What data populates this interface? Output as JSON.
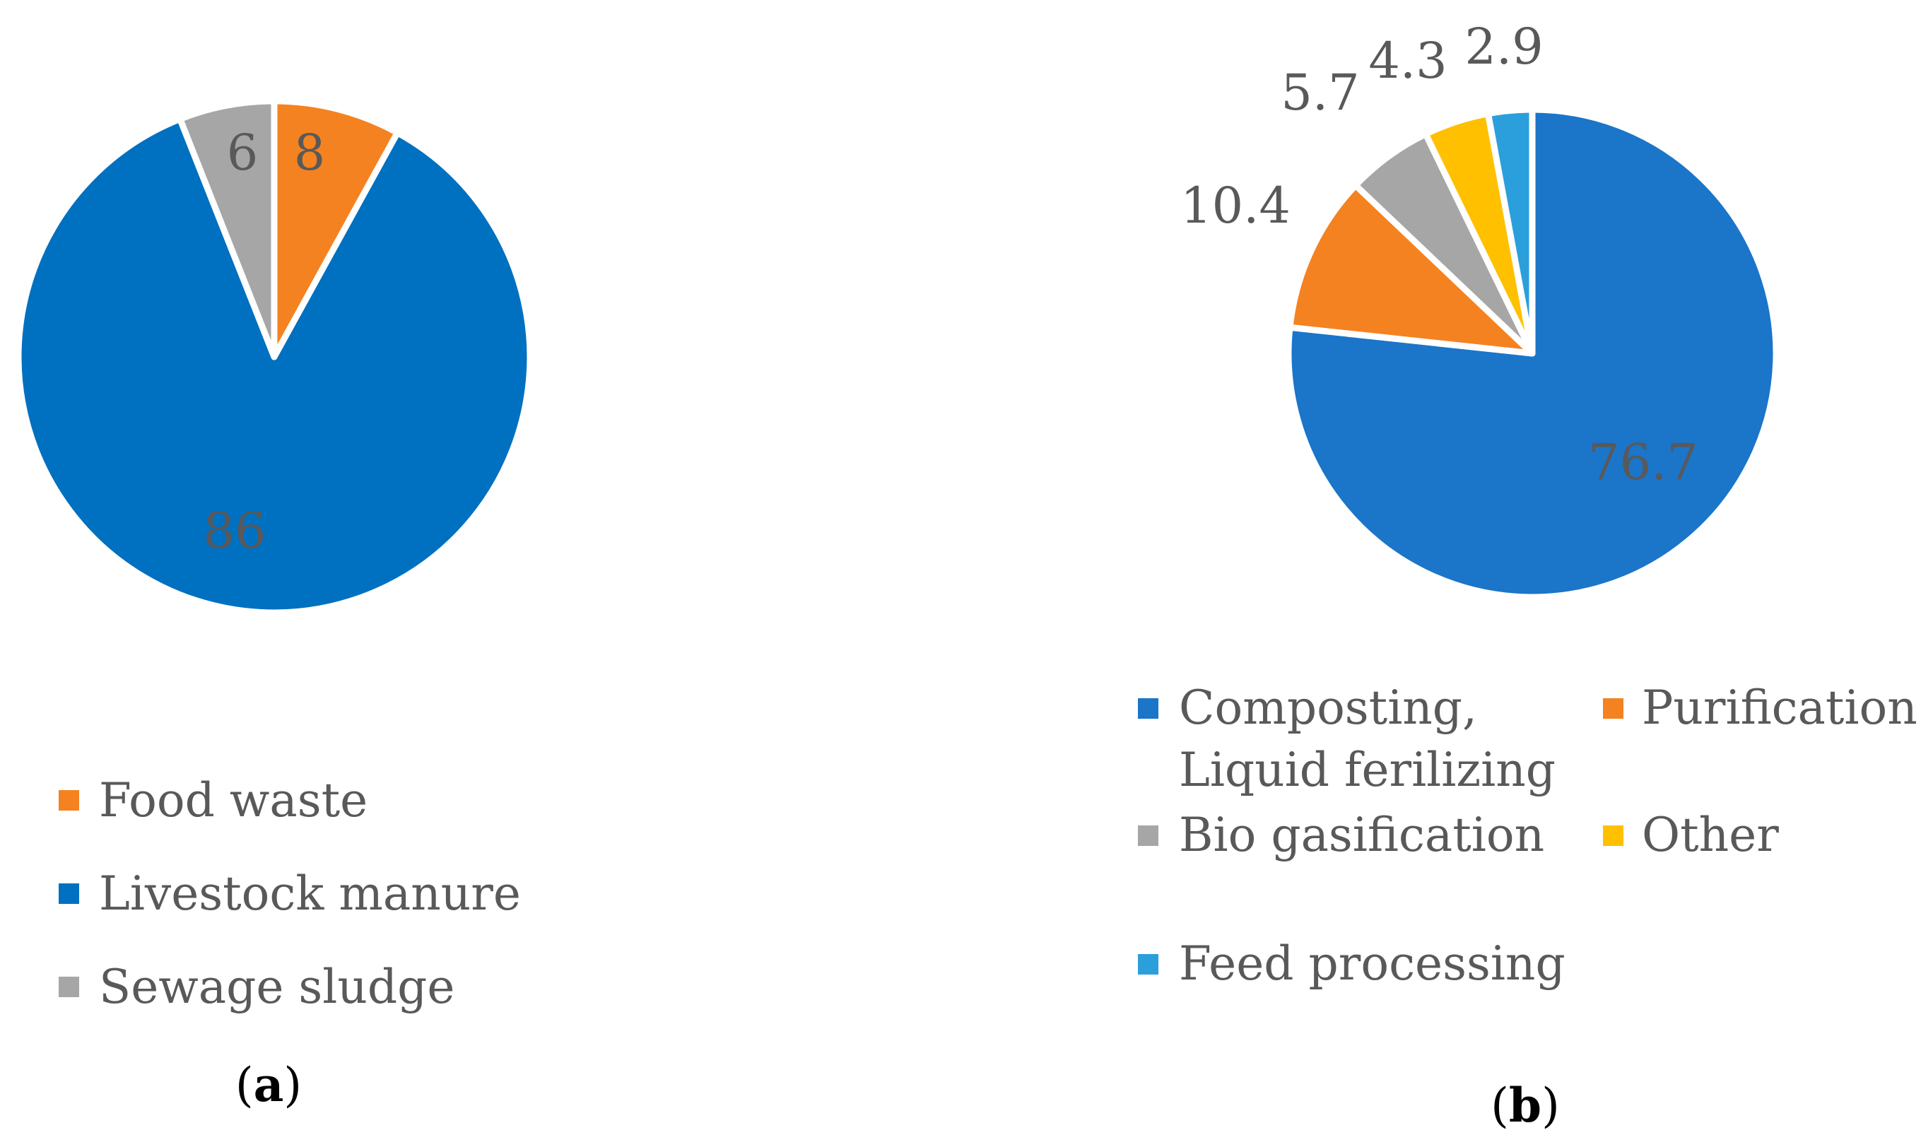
{
  "chart_data": [
    {
      "type": "pie",
      "caption_prefix": "(",
      "caption_letter": "a",
      "caption_suffix": ")",
      "categories": [
        "Food waste",
        "Livestock manure",
        "Sewage sludge"
      ],
      "values": [
        8,
        86,
        6
      ],
      "labels": [
        "8",
        "86",
        "6"
      ],
      "colors": [
        "#F58220",
        "#0070C0",
        "#A6A6A6"
      ],
      "start_angle_deg": 0,
      "direction": "clockwise",
      "legend": {
        "position": "bottom",
        "items": [
          {
            "label": "Food waste",
            "color": "#F58220"
          },
          {
            "label": "Livestock manure",
            "color": "#0070C0"
          },
          {
            "label": "Sewage sludge",
            "color": "#A6A6A6"
          }
        ]
      }
    },
    {
      "type": "pie",
      "caption_prefix": "(",
      "caption_letter": "b",
      "caption_suffix": ")",
      "categories": [
        "Composting, Liquid ferilizing",
        "Purification",
        "Bio gasification",
        "Other",
        "Feed processing"
      ],
      "values": [
        76.7,
        10.4,
        5.7,
        4.3,
        2.9
      ],
      "labels": [
        "76.7",
        "10.4",
        "5.7",
        "4.3",
        "2.9"
      ],
      "colors": [
        "#1B75C9",
        "#F58220",
        "#A6A6A6",
        "#FFC000",
        "#2B9FDB"
      ],
      "start_angle_deg": 0,
      "direction": "clockwise",
      "legend": {
        "position": "bottom",
        "items": [
          {
            "label_line1": "Composting,",
            "label_line2": "Liquid ferilizing",
            "color": "#1B75C9"
          },
          {
            "label": "Purification",
            "color": "#F58220"
          },
          {
            "label": "Bio gasification",
            "color": "#A6A6A6"
          },
          {
            "label": "Other",
            "color": "#FFC000"
          },
          {
            "label": "Feed processing",
            "color": "#2B9FDB"
          }
        ]
      }
    }
  ]
}
